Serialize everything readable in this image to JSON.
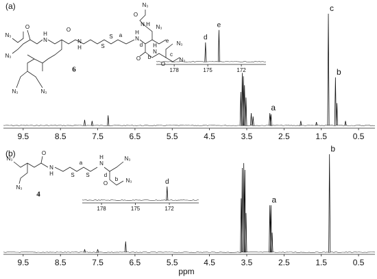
{
  "chart_data": [
    {
      "type": "spectrum",
      "label": "(a)",
      "xlim": [
        10.03,
        0.06
      ],
      "xticks": [
        9.5,
        8.5,
        7.5,
        6.5,
        5.5,
        4.5,
        3.5,
        2.5,
        1.5,
        0.5
      ],
      "ylim": [
        0,
        100
      ],
      "x": [
        7.85,
        7.65,
        7.22,
        3.66,
        3.62,
        3.59,
        3.56,
        3.52,
        3.38,
        3.33,
        2.88,
        2.85,
        2.05,
        1.63,
        1.31,
        1.12,
        1.08,
        0.85
      ],
      "values": [
        5,
        4,
        9,
        30,
        47,
        44,
        36,
        25,
        11,
        8,
        11,
        10,
        4,
        3,
        100,
        43,
        20,
        4
      ],
      "annotations": [
        {
          "text": "a",
          "x": 2.88
        },
        {
          "text": "c",
          "x": 1.31
        },
        {
          "text": "b",
          "x": 1.12
        }
      ],
      "inset": {
        "xlim": [
          179.6,
          169.8
        ],
        "xticks": [
          178,
          175,
          172
        ],
        "ylim": [
          0,
          100
        ],
        "x": [
          175.2,
          174.0
        ],
        "values": [
          51,
          84
        ],
        "annotations": [
          {
            "text": "d",
            "x": 175.2
          },
          {
            "text": "e",
            "x": 174.0
          }
        ]
      },
      "structure": {
        "compound": "6",
        "atoms": [
          "N₃",
          "N₃",
          "O",
          "H",
          "N",
          "N",
          "H",
          "O",
          "S",
          "S",
          "a",
          "H",
          "N",
          "d",
          "O",
          "b",
          "N",
          "H",
          "O",
          "N",
          "H",
          "e",
          "c",
          "O",
          "N₃",
          "N₃",
          "N₃",
          "N₃",
          "N₃",
          "N₃"
        ]
      }
    },
    {
      "type": "spectrum",
      "label": "(b)",
      "xlabel": "ppm",
      "xlim": [
        10.03,
        0.06
      ],
      "xticks": [
        9.5,
        8.5,
        7.5,
        6.5,
        5.5,
        4.5,
        3.5,
        2.5,
        1.5,
        0.5
      ],
      "ylim": [
        0,
        100
      ],
      "x": [
        7.85,
        7.5,
        6.75,
        3.65,
        3.62,
        3.58,
        3.55,
        3.52,
        2.88,
        2.85,
        2.82,
        1.28
      ],
      "values": [
        3,
        3,
        11,
        55,
        86,
        91,
        84,
        40,
        48,
        48,
        20,
        100
      ],
      "annotations": [
        {
          "text": "a",
          "x": 2.86
        },
        {
          "text": "b",
          "x": 1.28
        }
      ],
      "inset": {
        "xlim": [
          179.7,
          169.4
        ],
        "xticks": [
          178,
          175,
          172
        ],
        "ylim": [
          0,
          100
        ],
        "x": [
          172.2
        ],
        "values": [
          36
        ],
        "annotations": [
          {
            "text": "d",
            "x": 172.2
          }
        ]
      },
      "structure": {
        "compound": "4",
        "atoms": [
          "N₃",
          "O",
          "H",
          "N",
          "S",
          "a",
          "S",
          "H",
          "N",
          "d",
          "O",
          "b",
          "N₃",
          "N₃",
          "N₃"
        ]
      }
    }
  ]
}
